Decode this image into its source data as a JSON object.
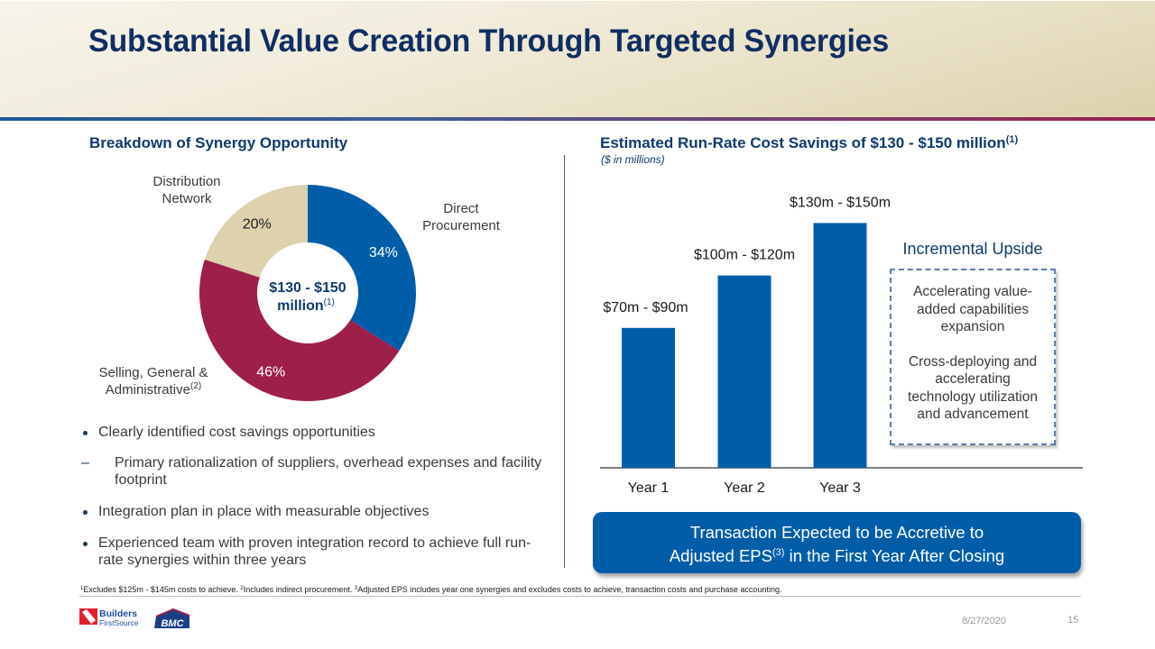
{
  "slide": {
    "title": "Substantial Value Creation Through Targeted Synergies",
    "date": "8/27/2020",
    "page_number": "15"
  },
  "left_section": {
    "heading": "Breakdown of Synergy Opportunity",
    "donut_center_line1": "$130 - $150",
    "donut_center_line2": "million",
    "donut_center_sup": "(1)",
    "bullets": [
      "Clearly identified cost savings opportunities",
      "Integration plan in place with measurable objectives",
      "Experienced team with proven integration record to achieve full run-rate synergies within three years"
    ],
    "sub_bullets": [
      "Primary rationalization of suppliers, overhead expenses and facility footprint"
    ]
  },
  "right_section": {
    "heading": "Estimated Run-Rate Cost Savings of $130 - $150 million",
    "heading_sup": "(1)",
    "subnote": "($ in millions)",
    "upside": {
      "title": "Incremental Upside",
      "items": [
        "Accelerating value-added capabilities expansion",
        "Cross-deploying and accelerating technology utilization and advancement"
      ]
    },
    "callout_line1": "Transaction Expected to be Accretive to",
    "callout_line2_pre": "Adjusted EPS",
    "callout_line2_sup": "(3)",
    "callout_line2_post": " in the First Year After Closing"
  },
  "footnote": {
    "n1_marker": "1",
    "n1": "Excludes $125m - $145m costs to achieve. ",
    "n2_marker": "2",
    "n2": "Includes indirect procurement. ",
    "n3_marker": "3",
    "n3": "Adjusted EPS includes year one synergies and excludes costs to achieve, transaction costs and purchase accounting."
  },
  "logos": {
    "bfs_line1": "Builders",
    "bfs_line2": "FirstSource",
    "bmc": "BMC"
  },
  "colors": {
    "title_navy": "#0f2e63",
    "blue": "#005ea8",
    "crimson": "#9e1f4a",
    "beige": "#ddd1ae"
  },
  "chart_data": [
    {
      "type": "pie",
      "variant": "donut",
      "title": "Breakdown of Synergy Opportunity",
      "center_label": "$130 - $150 million(1)",
      "slices": [
        {
          "label_lines": [
            "Direct",
            "Procurement"
          ],
          "label_sup": "",
          "value": 34,
          "pct_label": "34%",
          "color": "#005ea8",
          "pct_color": "#ffffff"
        },
        {
          "label_lines": [
            "Selling, General &",
            "Administrative"
          ],
          "label_sup": "(2)",
          "value": 46,
          "pct_label": "46%",
          "color": "#9e1f4a",
          "pct_color": "#ffffff"
        },
        {
          "label_lines": [
            "Distribution",
            "Network"
          ],
          "label_sup": "",
          "value": 20,
          "pct_label": "20%",
          "color": "#ddd1ae",
          "pct_color": "#1a1a1a"
        }
      ],
      "start": "12 o'clock",
      "direction": "clockwise"
    },
    {
      "type": "bar",
      "title": "Estimated Run-Rate Cost Savings of $130 - $150 million(1)",
      "subtitle": "($ in millions)",
      "categories": [
        "Year 1",
        "Year 2",
        "Year 3"
      ],
      "values": [
        80,
        110,
        140
      ],
      "ranges": [
        [
          70,
          90
        ],
        [
          100,
          120
        ],
        [
          130,
          150
        ]
      ],
      "data_labels": [
        "$70m - $90m",
        "$100m - $120m",
        "$130m - $150m"
      ],
      "xlabel": "",
      "ylabel": "",
      "ylim": [
        0,
        150
      ],
      "grid": false,
      "bar_color": "#005ea8"
    }
  ]
}
